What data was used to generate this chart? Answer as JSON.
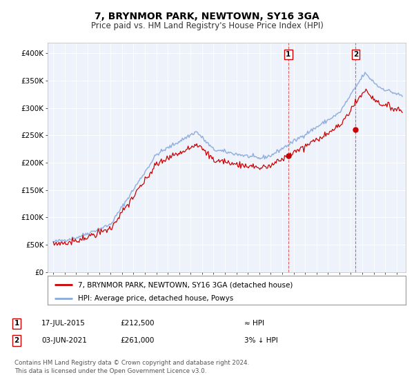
{
  "title": "7, BRYNMOR PARK, NEWTOWN, SY16 3GA",
  "subtitle": "Price paid vs. HM Land Registry's House Price Index (HPI)",
  "ylim": [
    0,
    420000
  ],
  "yticks": [
    0,
    50000,
    100000,
    150000,
    200000,
    250000,
    300000,
    350000,
    400000
  ],
  "ytick_labels": [
    "£0",
    "£50K",
    "£100K",
    "£150K",
    "£200K",
    "£250K",
    "£300K",
    "£350K",
    "£400K"
  ],
  "hpi_color": "#88aadd",
  "price_color": "#cc0000",
  "marker_color": "#cc0000",
  "vline_color": "#cc0000",
  "background_color": "#ffffff",
  "plot_bg_color": "#eef2fb",
  "grid_color": "#ffffff",
  "sale1_date_num": 2015.54,
  "sale1_price": 212500,
  "sale2_date_num": 2021.42,
  "sale2_price": 261000,
  "legend_line1": "7, BRYNMOR PARK, NEWTOWN, SY16 3GA (detached house)",
  "legend_line2": "HPI: Average price, detached house, Powys",
  "table_row1": [
    "1",
    "17-JUL-2015",
    "£212,500",
    "≈ HPI"
  ],
  "table_row2": [
    "2",
    "03-JUN-2021",
    "£261,000",
    "3% ↓ HPI"
  ],
  "footnote": "Contains HM Land Registry data © Crown copyright and database right 2024.\nThis data is licensed under the Open Government Licence v3.0.",
  "title_fontsize": 10,
  "subtitle_fontsize": 8.5,
  "axis_fontsize": 7.5
}
